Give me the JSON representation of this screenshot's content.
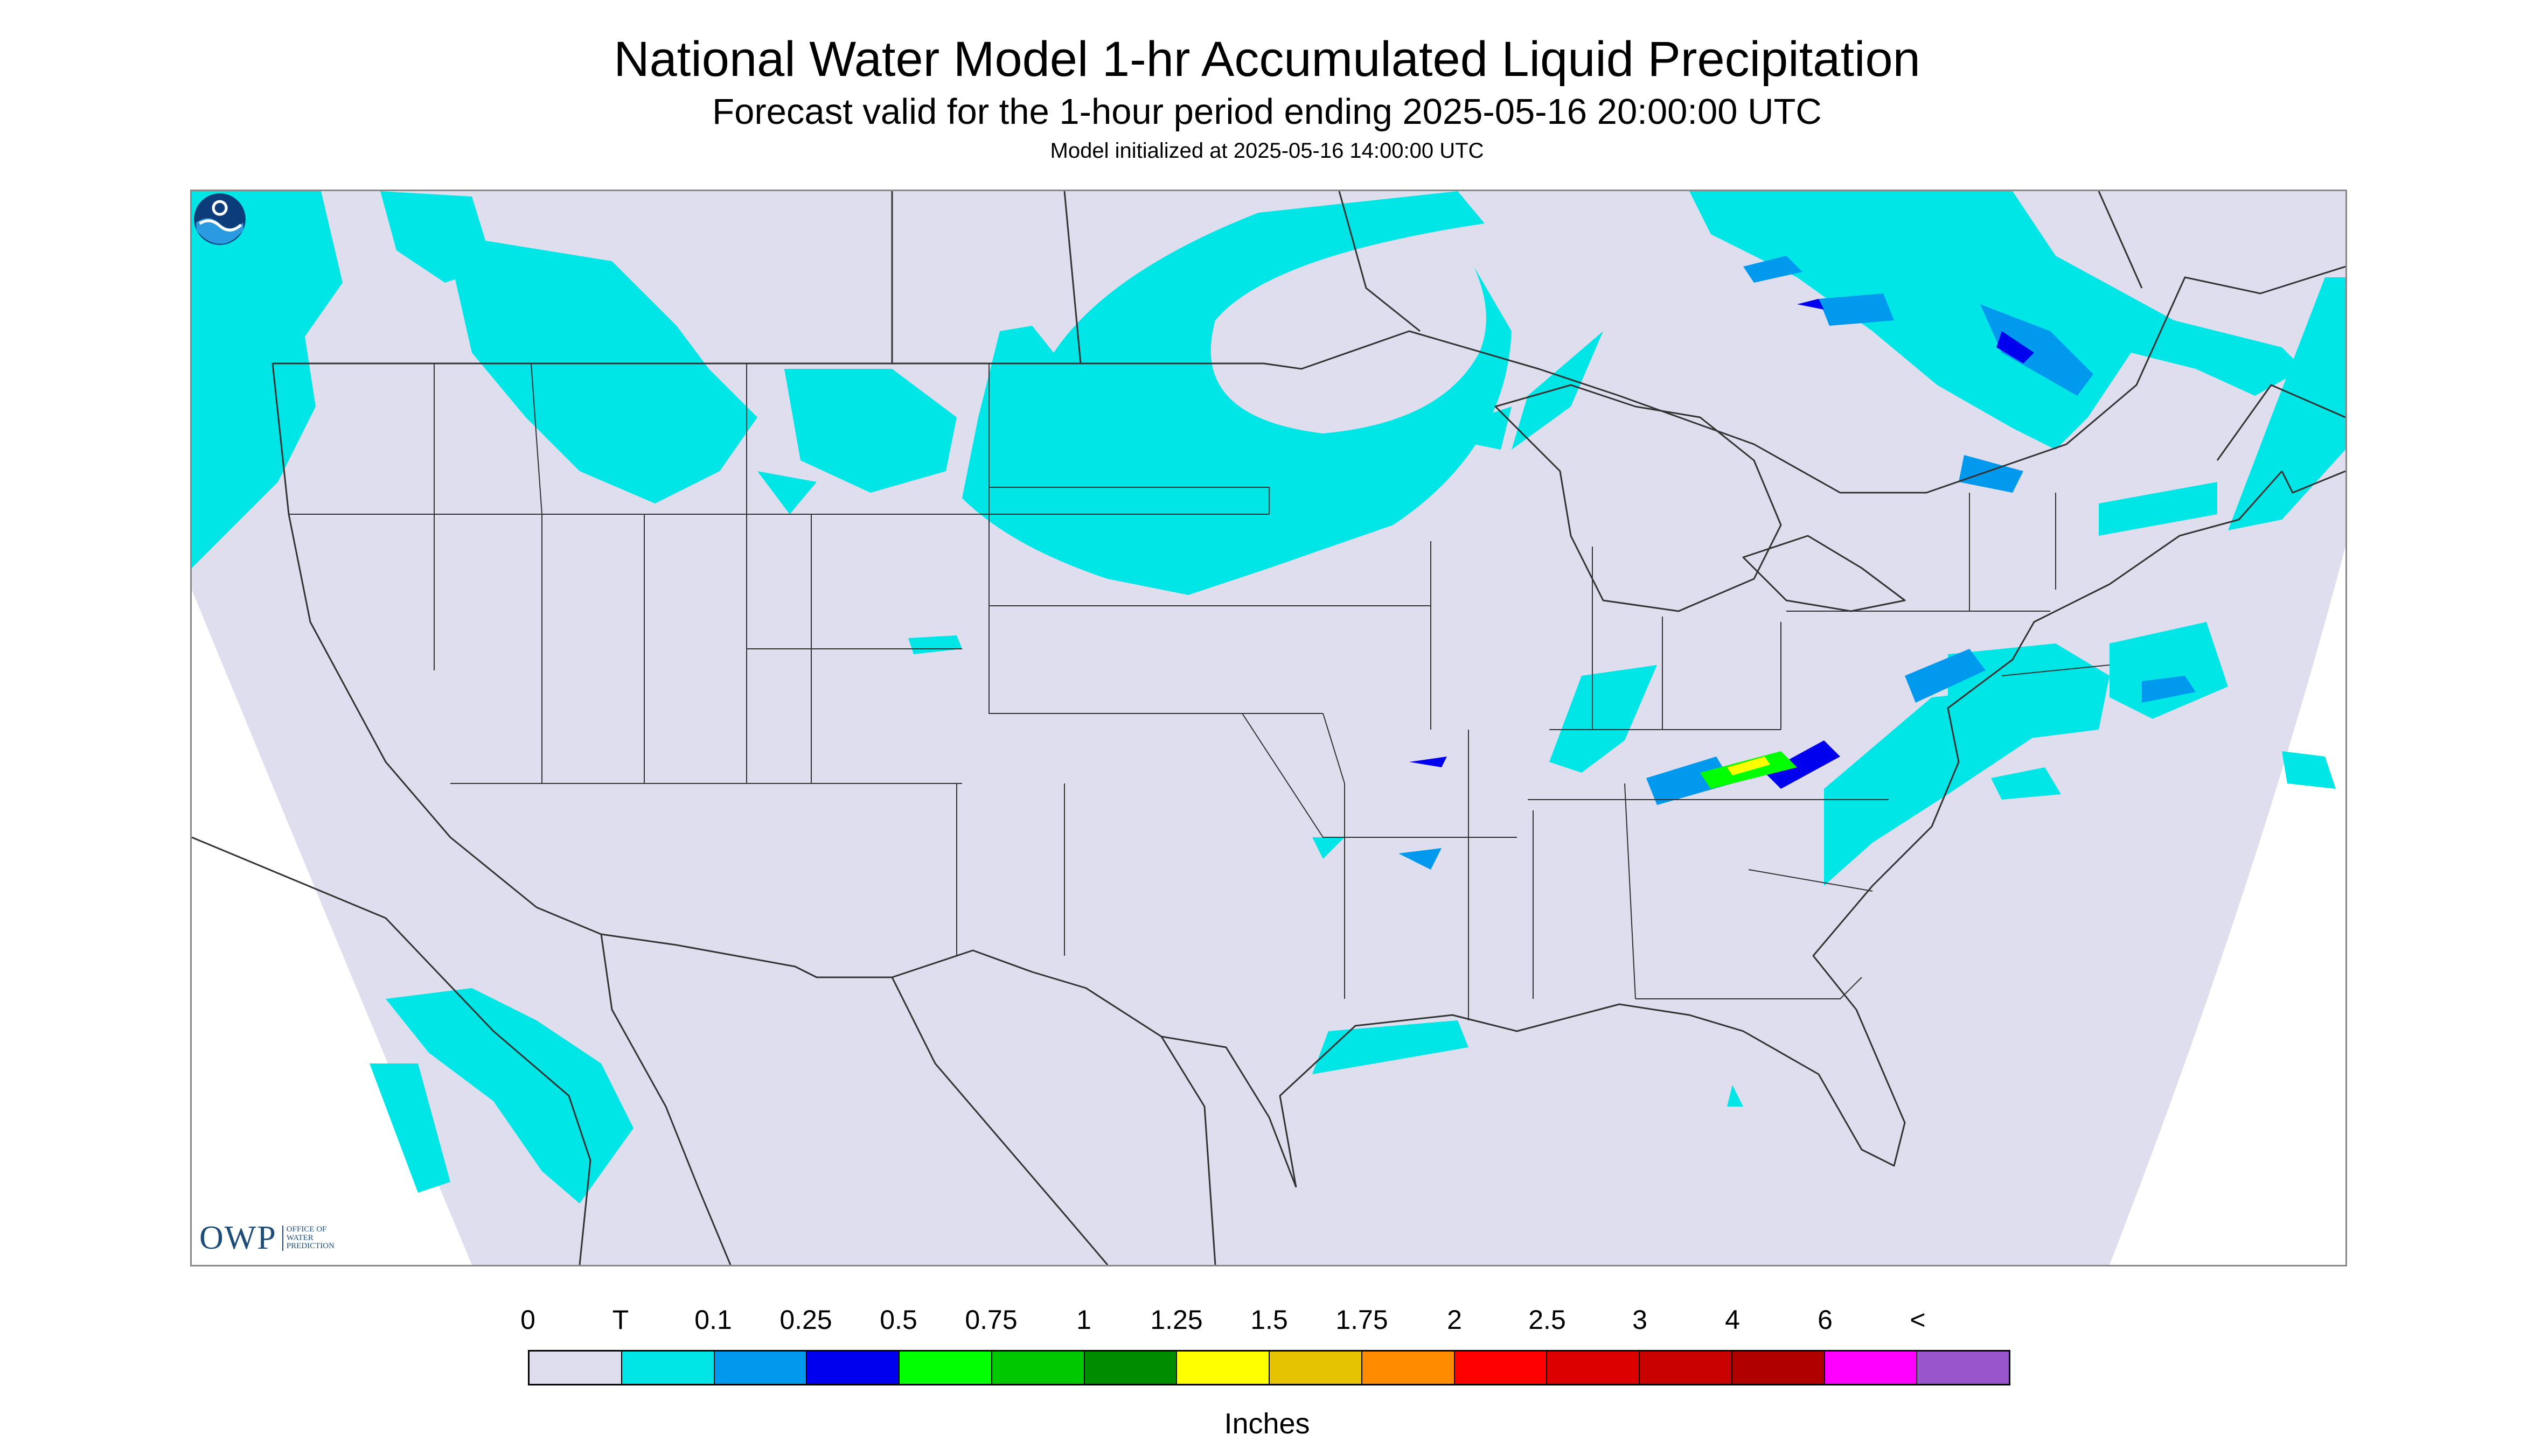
{
  "header": {
    "title": "National Water Model 1-hr Accumulated Liquid Precipitation",
    "subtitle": "Forecast valid for the 1-hour period ending 2025-05-16 20:00:00 UTC",
    "init": "Model initialized at 2025-05-16 14:00:00 UTC"
  },
  "map": {
    "projection_fill": "#dedeef",
    "outside_fill": "#ffffff",
    "boundary_color": "#333333",
    "precip_colors": {
      "trace": "#00e5e5",
      "tenth": "#0099ee",
      "quarter": "#0000ee",
      "half": "#00ff00",
      "three_quarter": "#00c800",
      "one_and_quarter": "#ffff00"
    },
    "logos": {
      "owp": {
        "icon": "owp-logo",
        "mark": "OWP",
        "text": "OFFICE OF WATER PREDICTION"
      },
      "noaa": {
        "icon": "noaa-logo"
      }
    }
  },
  "legend": {
    "units": "Inches",
    "labels": [
      "0",
      "T",
      "0.1",
      "0.25",
      "0.5",
      "0.75",
      "1",
      "1.25",
      "1.5",
      "1.75",
      "2",
      "2.5",
      "3",
      "4",
      "6",
      "<"
    ],
    "colors": [
      "#dedeef",
      "#00e5e5",
      "#0099ee",
      "#0000ee",
      "#00ff00",
      "#00c800",
      "#008c00",
      "#ffff00",
      "#e6c300",
      "#ff8c00",
      "#ff0000",
      "#dd0000",
      "#c80000",
      "#b00000",
      "#ff00ff",
      "#9955cc"
    ]
  }
}
